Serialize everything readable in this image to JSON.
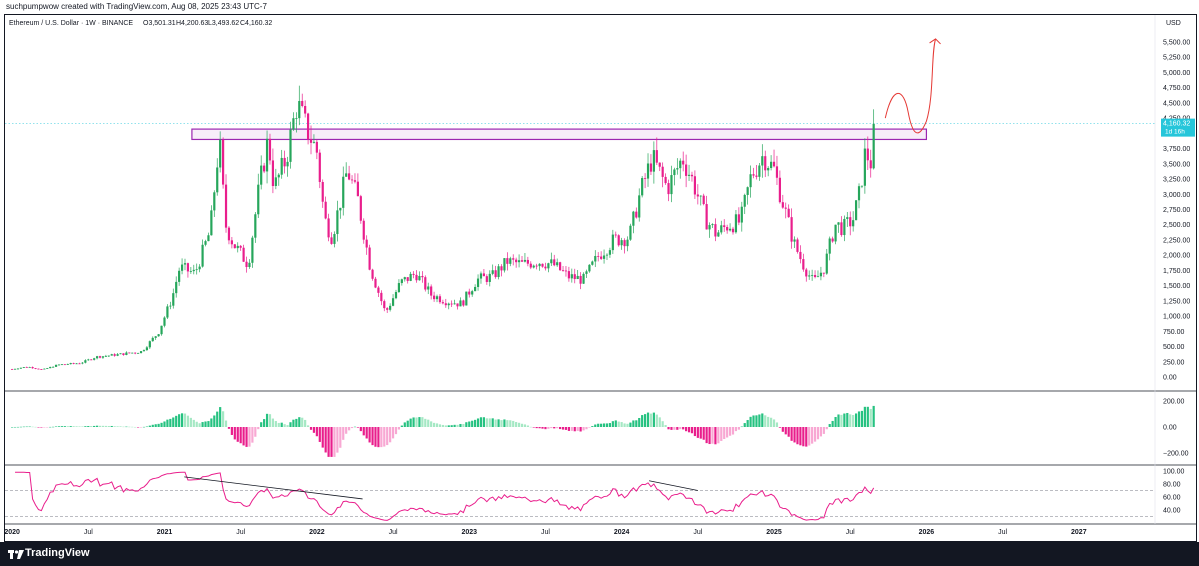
{
  "header": {
    "attribution": "suchpumpwow created with TradingView.com, Aug 08, 2025 23:43 UTC-7"
  },
  "footer": {
    "brand": "TradingView"
  },
  "chart_data": [
    {
      "type": "candlestick",
      "title": "Ethereum / U.S. Dollar · 1W · BINANCE",
      "ohlc_readout": {
        "open": "O3,501.31",
        "high": "H4,200.63",
        "low": "L3,493.62",
        "close": "C4,160.32"
      },
      "currency": "USD",
      "last_price": "4,160.32",
      "countdown": "1d 16h",
      "y_ticks": [
        "5,500.00",
        "5,250.00",
        "5,000.00",
        "4,750.00",
        "4,500.00",
        "4,250.00",
        "3,750.00",
        "3,500.00",
        "3,250.00",
        "3,000.00",
        "2,750.00",
        "2,500.00",
        "2,250.00",
        "2,000.00",
        "1,750.00",
        "1,500.00",
        "1,250.00",
        "1,000.00",
        "750.00",
        "500.00",
        "250.00",
        "0.00"
      ],
      "ylim": [
        0,
        5500
      ],
      "x_ticks": [
        "2020",
        "Jul",
        "2021",
        "Jul",
        "2022",
        "Jul",
        "2023",
        "Jul",
        "2024",
        "Jul",
        "2025",
        "Jul",
        "2026",
        "Jul",
        "2027"
      ],
      "x_years": [
        2020,
        2020.5,
        2021,
        2021.5,
        2022,
        2022.5,
        2023,
        2023.5,
        2024,
        2024.5,
        2025,
        2025.5,
        2026,
        2026.5,
        2027
      ],
      "xlim": [
        2019.96,
        2027.5
      ],
      "up_color": "#26a65b",
      "down_color": "#e91e8c",
      "resistance_zone": {
        "x": [
          2021.18,
          2026.0
        ],
        "y": [
          3900,
          4070
        ],
        "color": "#9c27b0"
      },
      "price_anchors": [
        [
          2020.0,
          130
        ],
        [
          2020.1,
          170
        ],
        [
          2020.2,
          120
        ],
        [
          2020.3,
          200
        ],
        [
          2020.45,
          230
        ],
        [
          2020.55,
          330
        ],
        [
          2020.7,
          370
        ],
        [
          2020.85,
          420
        ],
        [
          2020.96,
          730
        ],
        [
          2021.05,
          1300
        ],
        [
          2021.1,
          1800
        ],
        [
          2021.2,
          1700
        ],
        [
          2021.3,
          2400
        ],
        [
          2021.36,
          3900
        ],
        [
          2021.4,
          2500
        ],
        [
          2021.45,
          2200
        ],
        [
          2021.55,
          1850
        ],
        [
          2021.62,
          3100
        ],
        [
          2021.68,
          3900
        ],
        [
          2021.72,
          3100
        ],
        [
          2021.8,
          3600
        ],
        [
          2021.87,
          4500
        ],
        [
          2021.92,
          4150
        ],
        [
          2022.0,
          3700
        ],
        [
          2022.05,
          2600
        ],
        [
          2022.1,
          2300
        ],
        [
          2022.2,
          3400
        ],
        [
          2022.27,
          2900
        ],
        [
          2022.35,
          1800
        ],
        [
          2022.45,
          1050
        ],
        [
          2022.55,
          1550
        ],
        [
          2022.65,
          1700
        ],
        [
          2022.75,
          1350
        ],
        [
          2022.85,
          1250
        ],
        [
          2022.95,
          1200
        ],
        [
          2023.05,
          1600
        ],
        [
          2023.15,
          1650
        ],
        [
          2023.25,
          1900
        ],
        [
          2023.35,
          1850
        ],
        [
          2023.45,
          1900
        ],
        [
          2023.55,
          1850
        ],
        [
          2023.65,
          1650
        ],
        [
          2023.75,
          1600
        ],
        [
          2023.85,
          2000
        ],
        [
          2023.95,
          2250
        ],
        [
          2024.05,
          2300
        ],
        [
          2024.12,
          3000
        ],
        [
          2024.2,
          3600
        ],
        [
          2024.3,
          3100
        ],
        [
          2024.4,
          3600
        ],
        [
          2024.47,
          3200
        ],
        [
          2024.55,
          2600
        ],
        [
          2024.62,
          2350
        ],
        [
          2024.7,
          2500
        ],
        [
          2024.78,
          2550
        ],
        [
          2024.85,
          3300
        ],
        [
          2024.93,
          3650
        ],
        [
          2025.0,
          3400
        ],
        [
          2025.07,
          2750
        ],
        [
          2025.13,
          2200
        ],
        [
          2025.2,
          1800
        ],
        [
          2025.26,
          1550
        ],
        [
          2025.33,
          1800
        ],
        [
          2025.4,
          2500
        ],
        [
          2025.46,
          2450
        ],
        [
          2025.52,
          2600
        ],
        [
          2025.56,
          3000
        ],
        [
          2025.6,
          3700
        ],
        [
          2025.64,
          3500
        ],
        [
          2025.66,
          4160
        ]
      ],
      "upper_trendlines": [
        [
          [
            2021.13,
            3800
          ],
          [
            2021.3,
            3800
          ]
        ]
      ],
      "projection_color": "#e53935",
      "macd_ticks": [
        "200.00",
        "0.00",
        "-200.00"
      ],
      "macd_ylim": [
        -260,
        260
      ],
      "rsi_ticks": [
        "100.00",
        "80.00",
        "60.00",
        "40.00"
      ],
      "rsi_ylim": [
        20,
        100
      ],
      "rsi_levels": [
        70,
        30
      ],
      "rsi_color": "#e91e8c",
      "rsi_divergences": [
        [
          [
            2021.13,
            91
          ],
          [
            2022.3,
            57
          ]
        ],
        [
          [
            2024.18,
            85
          ],
          [
            2024.5,
            70
          ]
        ]
      ]
    }
  ]
}
